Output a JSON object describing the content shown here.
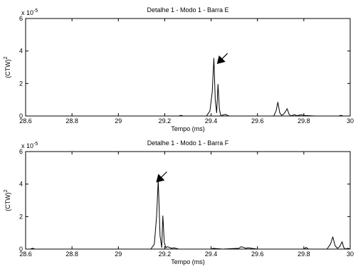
{
  "chart_data": [
    {
      "type": "line",
      "title": "Detalhe 1 - Modo 1 - Barra E",
      "xlabel": "Tempo (ms)",
      "ylabel": "(CTW)",
      "ylabel_sup": "2",
      "exponent_label": "x 10",
      "exponent_sup": "-5",
      "xlim": [
        28.6,
        30
      ],
      "ylim": [
        0,
        6
      ],
      "xticks": [
        28.6,
        28.8,
        29,
        29.2,
        29.4,
        29.6,
        29.8,
        30
      ],
      "xtick_labels": [
        "28.6",
        "28.8",
        "29",
        "29.2",
        "29.4",
        "29.6",
        "29.8",
        "30"
      ],
      "yticks": [
        0,
        2,
        4,
        6
      ],
      "ytick_labels": [
        "0",
        "2",
        "4",
        "6"
      ],
      "annotation": {
        "type": "arrow",
        "points_to": [
          29.425,
          3.2
        ]
      },
      "series": [
        {
          "x": [
            28.6,
            28.9,
            29.26,
            29.27,
            29.28,
            29.3,
            29.38,
            29.395,
            29.405,
            29.412,
            29.418,
            29.424,
            29.43,
            29.436,
            29.442,
            29.448,
            29.455,
            29.462,
            29.47,
            29.478,
            29.5,
            29.6,
            29.67,
            29.68,
            29.688,
            29.696,
            29.704,
            29.712,
            29.72,
            29.728,
            29.736,
            29.744,
            29.752,
            29.76,
            29.77,
            29.78,
            29.79,
            29.8,
            29.85,
            29.9,
            29.95,
            29.96,
            29.97,
            30
          ],
          "values": [
            0,
            0,
            0,
            0.04,
            0,
            0,
            0,
            0.3,
            1.5,
            3.55,
            1.0,
            0.2,
            1.95,
            0.4,
            0,
            0.05,
            0.08,
            0.1,
            0.05,
            0,
            0,
            0,
            0,
            0.3,
            0.85,
            0.2,
            0.05,
            0.1,
            0.25,
            0.45,
            0.12,
            0,
            0.05,
            0.08,
            0.02,
            0.05,
            0.08,
            0.03,
            0,
            0,
            0,
            0.04,
            0,
            0
          ]
        }
      ]
    },
    {
      "type": "line",
      "title": "Detalhe 1 - Modo 1 - Barra F",
      "xlabel": "Tempo (ms)",
      "ylabel": "(CTW)",
      "ylabel_sup": "2",
      "exponent_label": "x 10",
      "exponent_sup": "-5",
      "xlim": [
        28.6,
        30
      ],
      "ylim": [
        0,
        6
      ],
      "xticks": [
        28.6,
        28.8,
        29,
        29.2,
        29.4,
        29.6,
        29.8,
        30
      ],
      "xtick_labels": [
        "28.6",
        "28.8",
        "29",
        "29.2",
        "29.4",
        "29.6",
        "29.8",
        "30"
      ],
      "yticks": [
        0,
        2,
        4,
        6
      ],
      "ytick_labels": [
        "0",
        "2",
        "4",
        "6"
      ],
      "annotation": {
        "type": "arrow",
        "points_to": [
          29.163,
          4.1
        ]
      },
      "series": [
        {
          "x": [
            28.6,
            28.62,
            28.63,
            28.64,
            28.7,
            29.1,
            29.14,
            29.155,
            29.165,
            29.172,
            29.18,
            29.187,
            29.192,
            29.198,
            29.205,
            29.212,
            29.22,
            29.23,
            29.24,
            29.26,
            29.3,
            29.4,
            29.41,
            29.42,
            29.45,
            29.52,
            29.53,
            29.54,
            29.55,
            29.56,
            29.6,
            29.8,
            29.81,
            29.82,
            29.9,
            29.915,
            29.925,
            29.935,
            29.945,
            29.955,
            29.965,
            29.972,
            29.98,
            29.99,
            30
          ],
          "values": [
            0,
            0,
            0.05,
            0,
            0,
            0,
            0,
            0.3,
            2.0,
            4.25,
            0.8,
            0.1,
            2.05,
            0.4,
            0.08,
            0.15,
            0.1,
            0.05,
            0.08,
            0,
            0,
            0,
            0.05,
            0.03,
            0,
            0.05,
            0.15,
            0.1,
            0.05,
            0.08,
            0,
            0,
            0.1,
            0,
            0,
            0.3,
            0.75,
            0.2,
            0.05,
            0.15,
            0.45,
            0.1,
            0,
            0.05,
            0
          ]
        }
      ]
    }
  ]
}
